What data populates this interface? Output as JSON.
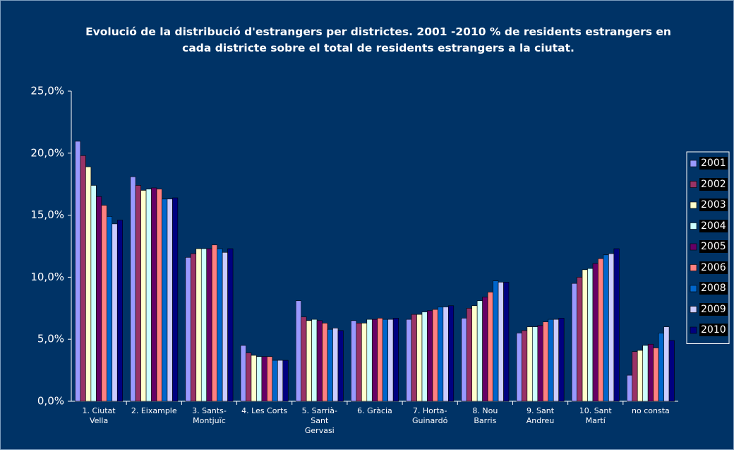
{
  "chart_data": {
    "type": "bar",
    "title": "Evolució de la distribució d'estrangers per districtes. 2001 -2010 % de residents estrangers en cada districte sobre el total de residents estrangers a la ciutat.",
    "categories": [
      "1. Ciutat Vella",
      "2. Eixample",
      "3. Sants-Montjuïc",
      "4. Les Corts",
      "5. Sarrià-Sant Gervasi",
      "6. Gràcia",
      "7. Horta-Guinardó",
      "8. Nou Barris",
      "9. Sant Andreu",
      "10. Sant Martí",
      "no consta"
    ],
    "series": [
      {
        "name": "2001",
        "color": "#9999ff",
        "values": [
          20.96,
          18.1,
          11.6,
          4.5,
          8.1,
          6.5,
          6.6,
          6.7,
          5.5,
          9.5,
          2.1
        ]
      },
      {
        "name": "2002",
        "color": "#993366",
        "values": [
          19.8,
          17.4,
          11.9,
          3.9,
          6.8,
          6.3,
          7.0,
          7.5,
          5.7,
          10.0,
          4.0
        ]
      },
      {
        "name": "2003",
        "color": "#ffffcc",
        "values": [
          18.9,
          17.0,
          12.3,
          3.7,
          6.5,
          6.3,
          7.0,
          7.7,
          6.0,
          10.6,
          4.1
        ]
      },
      {
        "name": "2004",
        "color": "#ccffff",
        "values": [
          17.4,
          17.1,
          12.3,
          3.6,
          6.6,
          6.6,
          7.2,
          8.1,
          6.0,
          10.7,
          4.5
        ]
      },
      {
        "name": "2005",
        "color": "#660066",
        "values": [
          16.5,
          17.2,
          12.3,
          3.6,
          6.5,
          6.6,
          7.3,
          8.4,
          6.1,
          11.1,
          4.6
        ]
      },
      {
        "name": "2006",
        "color": "#ff8080",
        "values": [
          15.8,
          17.1,
          12.6,
          3.6,
          6.3,
          6.7,
          7.4,
          8.8,
          6.4,
          11.5,
          4.3
        ]
      },
      {
        "name": "2008",
        "color": "#0066cc",
        "values": [
          14.9,
          16.3,
          12.3,
          3.3,
          5.8,
          6.6,
          7.6,
          9.7,
          6.6,
          11.8,
          5.5
        ]
      },
      {
        "name": "2009",
        "color": "#ccccff",
        "values": [
          14.3,
          16.3,
          12.0,
          3.3,
          5.9,
          6.6,
          7.6,
          9.6,
          6.6,
          11.9,
          6.0
        ]
      },
      {
        "name": "2010",
        "color": "#000080",
        "values": [
          14.6,
          16.4,
          12.3,
          3.3,
          5.7,
          6.7,
          7.7,
          9.6,
          6.7,
          12.3,
          4.9
        ]
      }
    ],
    "ylim": [
      0,
      25
    ],
    "yticks": [
      {
        "value": 0,
        "label": "0,0%"
      },
      {
        "value": 5,
        "label": "5,0%"
      },
      {
        "value": 10,
        "label": "10,0%"
      },
      {
        "value": 15,
        "label": "15,0%"
      },
      {
        "value": 20,
        "label": "20,0%"
      },
      {
        "value": 25,
        "label": "25,0%"
      }
    ],
    "grid": false,
    "legend": "right"
  }
}
